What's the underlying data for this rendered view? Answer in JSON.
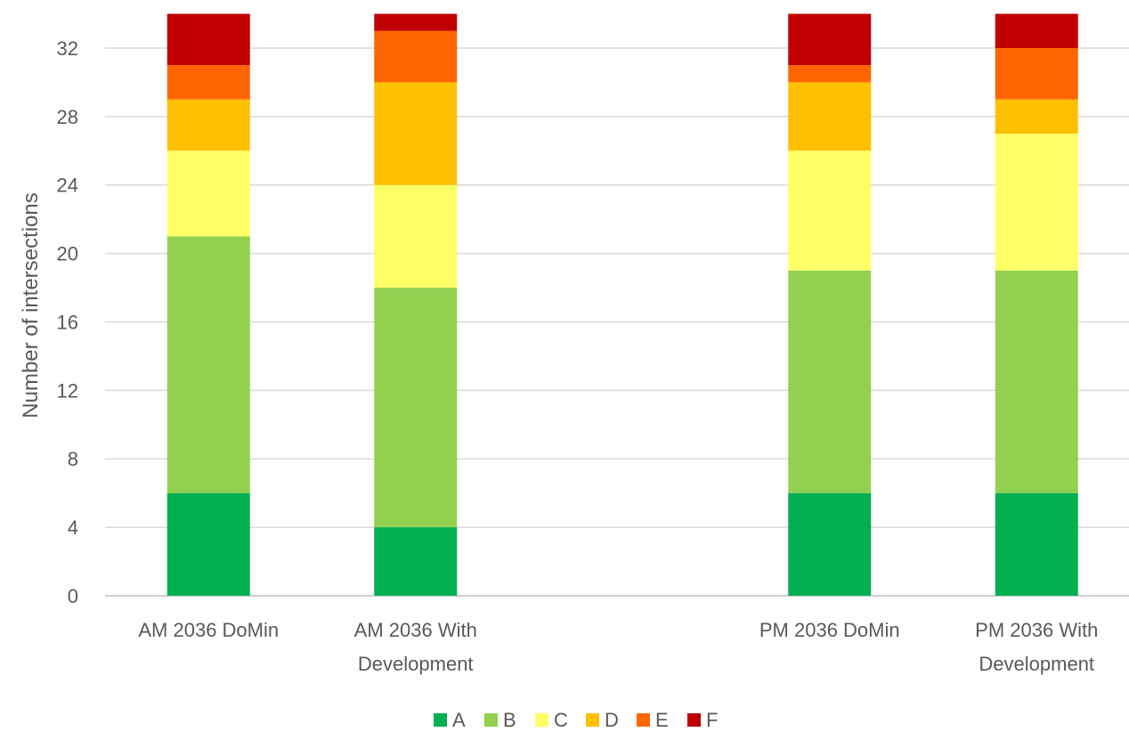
{
  "chart_data": {
    "type": "bar",
    "stacked": true,
    "title": "",
    "xlabel": "",
    "ylabel": "Number of intersections",
    "ylim": [
      0,
      34
    ],
    "yticks": [
      0,
      4,
      8,
      12,
      16,
      20,
      24,
      28,
      32
    ],
    "grid": true,
    "legend_position": "bottom",
    "categories": [
      [
        "AM 2036 DoMin"
      ],
      [
        "AM 2036 With",
        "Development"
      ],
      null,
      [
        "PM 2036 DoMin"
      ],
      [
        "PM 2036 With",
        "Development"
      ]
    ],
    "series": [
      {
        "name": "A",
        "color": "#00b050",
        "values": [
          6,
          4,
          null,
          6,
          6
        ]
      },
      {
        "name": "B",
        "color": "#92d050",
        "values": [
          15,
          14,
          null,
          13,
          13
        ]
      },
      {
        "name": "C",
        "color": "#ffff66",
        "values": [
          5,
          6,
          null,
          7,
          8
        ]
      },
      {
        "name": "D",
        "color": "#ffc000",
        "values": [
          3,
          6,
          null,
          4,
          2
        ]
      },
      {
        "name": "E",
        "color": "#ff6600",
        "values": [
          2,
          3,
          null,
          1,
          3
        ]
      },
      {
        "name": "F",
        "color": "#c00000",
        "values": [
          3,
          1,
          null,
          3,
          2
        ]
      }
    ]
  }
}
